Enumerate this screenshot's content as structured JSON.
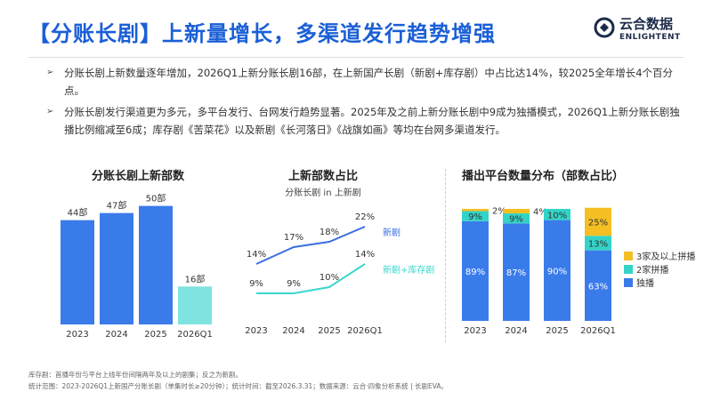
{
  "header": {
    "title": "【分账长剧】上新量增长，多渠道发行趋势增强",
    "logo_cn": "云合数据",
    "logo_en": "ENLIGHTENT"
  },
  "bullets": [
    "分账长剧上新数量逐年增加，2026Q1上新分账长剧16部，在上新国产长剧（新剧+库存剧）中占比达14%，较2025全年增长4个百分点。",
    "分账长剧发行渠道更为多元，多平台发行、台网发行趋势显著。2025年及之前上新分账长剧中9成为独播模式，2026Q1上新分账长剧独播比例缩减至6成；库存剧《苦菜花》以及新剧《长河落日》《战旗如画》等均在台网多渠道发行。"
  ],
  "chart_data": [
    {
      "type": "bar",
      "title": "分账长剧上新部数",
      "categories": [
        "2023",
        "2024",
        "2025",
        "2026Q1"
      ],
      "values": [
        44,
        47,
        50,
        16
      ],
      "labels": [
        "44部",
        "47部",
        "50部",
        "16部"
      ],
      "colors": [
        "#3a7bea",
        "#3a7bea",
        "#3a7bea",
        "#7fe3e0"
      ],
      "ylim": [
        0,
        60
      ]
    },
    {
      "type": "line",
      "title": "上新部数占比",
      "subtitle": "分账长剧 in 上新剧",
      "categories": [
        "2023",
        "2024",
        "2025",
        "2026Q1"
      ],
      "ylim": [
        0,
        25
      ],
      "series": [
        {
          "name": "新剧",
          "values": [
            14,
            17,
            18,
            22
          ],
          "labels": [
            "14%",
            "17%",
            "18%",
            "22%"
          ],
          "color": "#3a6fe0"
        },
        {
          "name": "新剧+库存剧",
          "values": [
            9,
            9,
            10,
            14
          ],
          "labels": [
            "9%",
            "9%",
            "10%",
            "14%"
          ],
          "color": "#3ad6cf"
        }
      ]
    },
    {
      "type": "bar",
      "title": "播出平台数量分布（部数占比）",
      "categories": [
        "2023",
        "2024",
        "2025",
        "2026Q1"
      ],
      "series": [
        {
          "name": "独播",
          "values": [
            89,
            87,
            90,
            63
          ],
          "labels": [
            "89%",
            "87%",
            "90%",
            "63%"
          ],
          "color": "#3a7bea"
        },
        {
          "name": "2家拼播",
          "values": [
            9,
            9,
            10,
            13
          ],
          "labels": [
            "9%",
            "9%",
            "10%",
            "13%"
          ],
          "color": "#34d3c8"
        },
        {
          "name": "3家及以上拼播",
          "values": [
            2,
            4,
            0,
            25
          ],
          "labels": [
            "2%",
            "4%",
            "",
            "25%"
          ],
          "color": "#f5bf24"
        }
      ],
      "legend": [
        "3家及以上拼播",
        "2家拼播",
        "独播"
      ]
    }
  ],
  "footnotes": [
    "库存剧：首播年份与平台上线年份间隔两年及以上的剧集；反之为新剧。",
    "统计范围：2023-2026Q1上新国产分账长剧（单集时长≥20分钟）；统计时间：截至2026.3.31；数据来源：云合·四象分析系统 | 长剧EVA。"
  ]
}
